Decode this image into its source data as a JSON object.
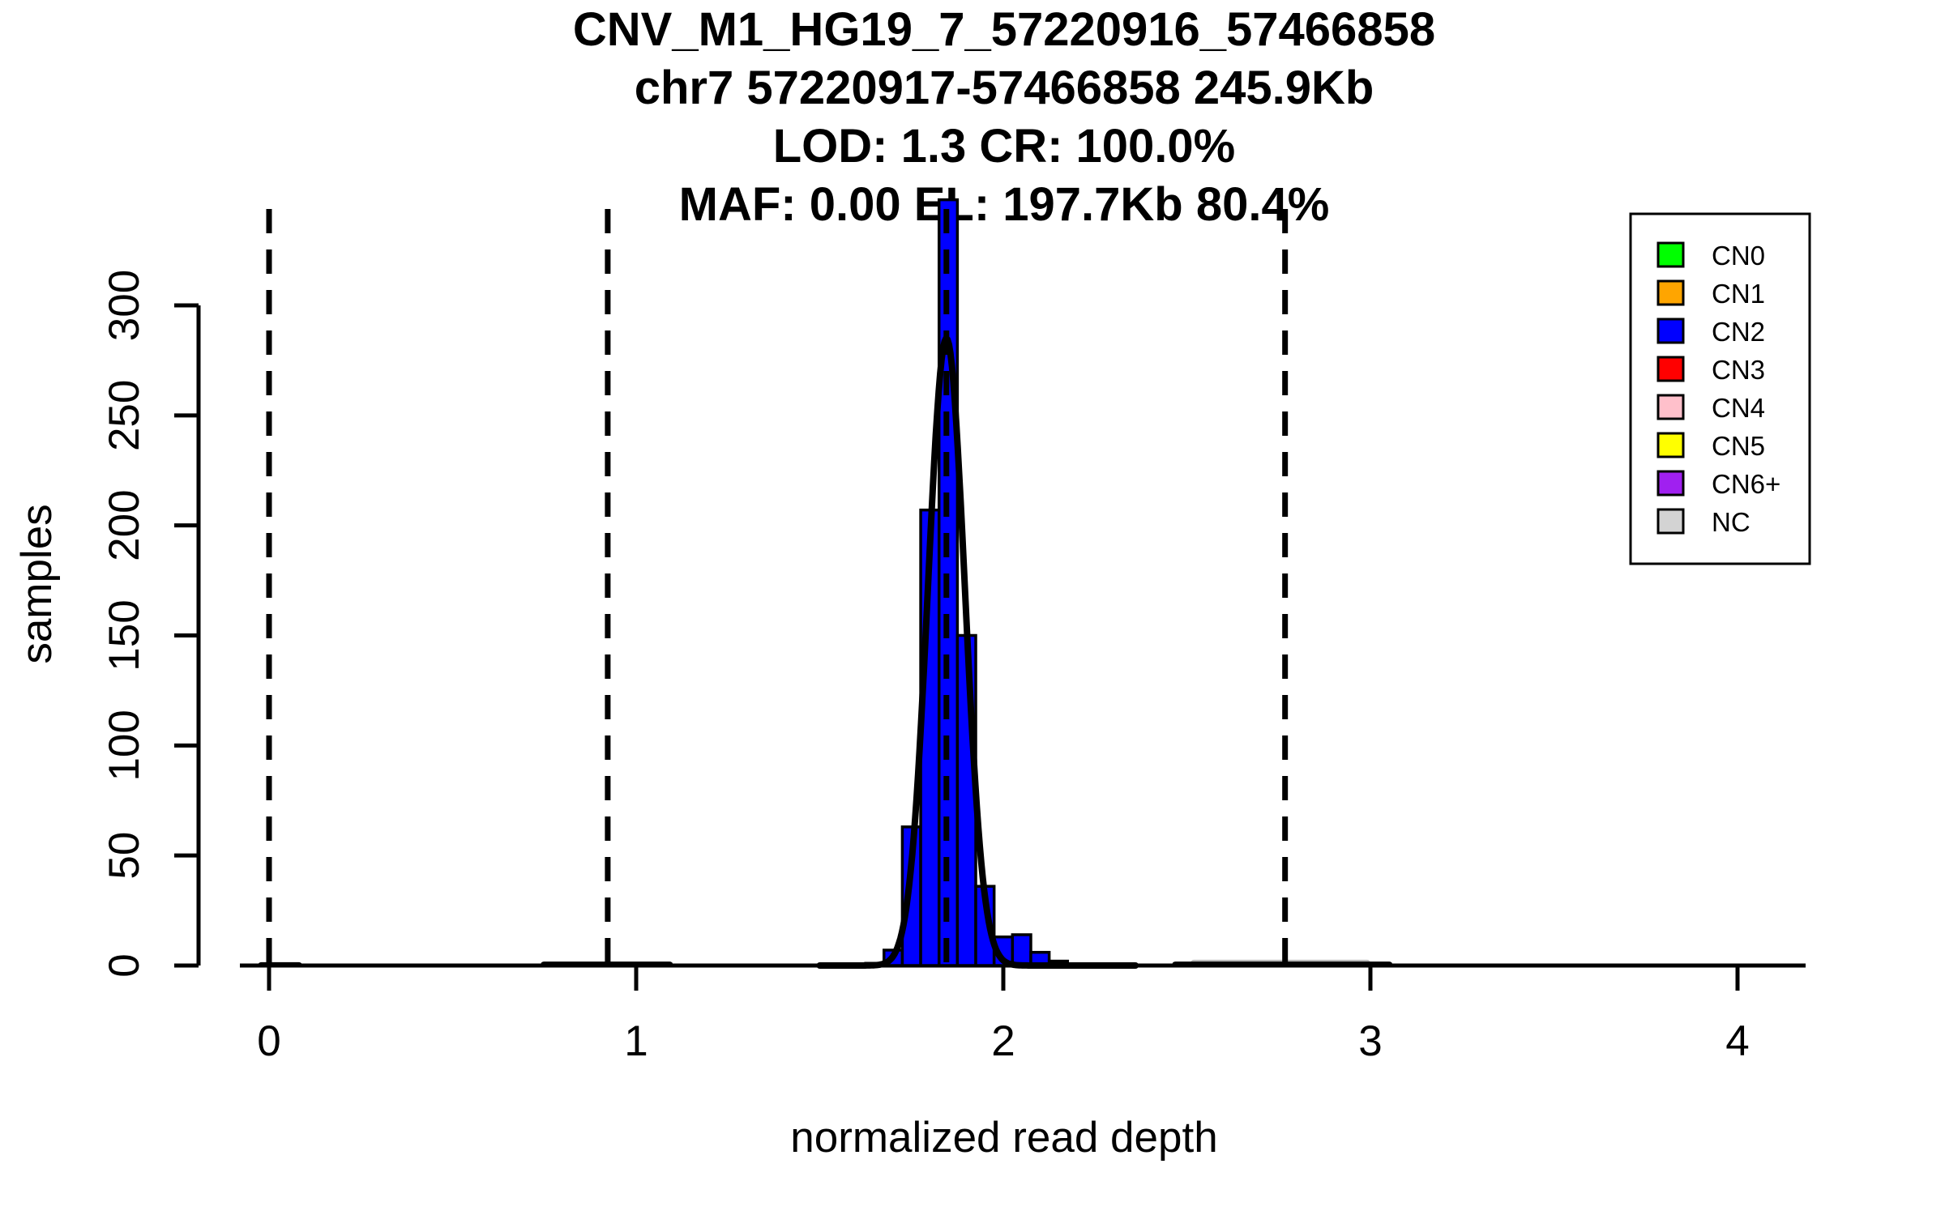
{
  "chart_data": {
    "type": "histogram",
    "title_lines": [
      "CNV_M1_HG19_7_57220916_57466858",
      "chr7 57220917-57466858 245.9Kb",
      "LOD: 1.3 CR: 100.0%",
      "MAF: 0.00 EL: 197.7Kb 80.4%"
    ],
    "xlabel": "normalized read depth",
    "ylabel": "samples",
    "x_ticks": [
      0,
      1,
      2,
      3,
      4
    ],
    "y_ticks": [
      0,
      50,
      100,
      150,
      200,
      250,
      300
    ],
    "xlim": [
      -0.1,
      4.15
    ],
    "ylim": [
      0,
      350
    ],
    "grid": false,
    "bin_width": 0.05,
    "bar_color": "#0000ff",
    "bar_border_color": "#000000",
    "bars": [
      {
        "center": 1.65,
        "count": 1
      },
      {
        "center": 1.7,
        "count": 7
      },
      {
        "center": 1.75,
        "count": 63
      },
      {
        "center": 1.8,
        "count": 207
      },
      {
        "center": 1.85,
        "count": 348
      },
      {
        "center": 1.9,
        "count": 150
      },
      {
        "center": 1.95,
        "count": 36
      },
      {
        "center": 2.0,
        "count": 13
      },
      {
        "center": 2.05,
        "count": 14
      },
      {
        "center": 2.1,
        "count": 6
      },
      {
        "center": 2.15,
        "count": 2
      }
    ],
    "density_curve": {
      "mean": 1.845,
      "sd": 0.05,
      "peak": 285,
      "draw_from": 1.5,
      "draw_to": 2.36,
      "color": "#000000"
    },
    "dashed_vlines": [
      {
        "label": "CN0",
        "x": 0
      },
      {
        "label": "CN1",
        "x": 0.9225
      },
      {
        "label": "CN2",
        "x": 1.845
      },
      {
        "label": "CN3",
        "x": 2.7675
      }
    ],
    "baseline_bumps": [
      {
        "from": -0.03,
        "to": 0.09,
        "count": 1.5,
        "color": "#000000"
      },
      {
        "from": 0.74,
        "to": 1.1,
        "count": 1.8,
        "color": "#000000"
      },
      {
        "from": 2.51,
        "to": 3.0,
        "count": 2.6,
        "color": "#b9b9b9"
      },
      {
        "from": 2.46,
        "to": 3.06,
        "count": 1.8,
        "color": "#000000"
      }
    ],
    "legend": {
      "position": "top-right",
      "items": [
        {
          "label": "CN0",
          "color": "#00ff00"
        },
        {
          "label": "CN1",
          "color": "#ffa500"
        },
        {
          "label": "CN2",
          "color": "#0000ff"
        },
        {
          "label": "CN3",
          "color": "#ff0000"
        },
        {
          "label": "CN4",
          "color": "#ffc0cb"
        },
        {
          "label": "CN5",
          "color": "#ffff00"
        },
        {
          "label": "CN6+",
          "color": "#a020f0"
        },
        {
          "label": "NC",
          "color": "#d3d3d3"
        }
      ]
    }
  }
}
